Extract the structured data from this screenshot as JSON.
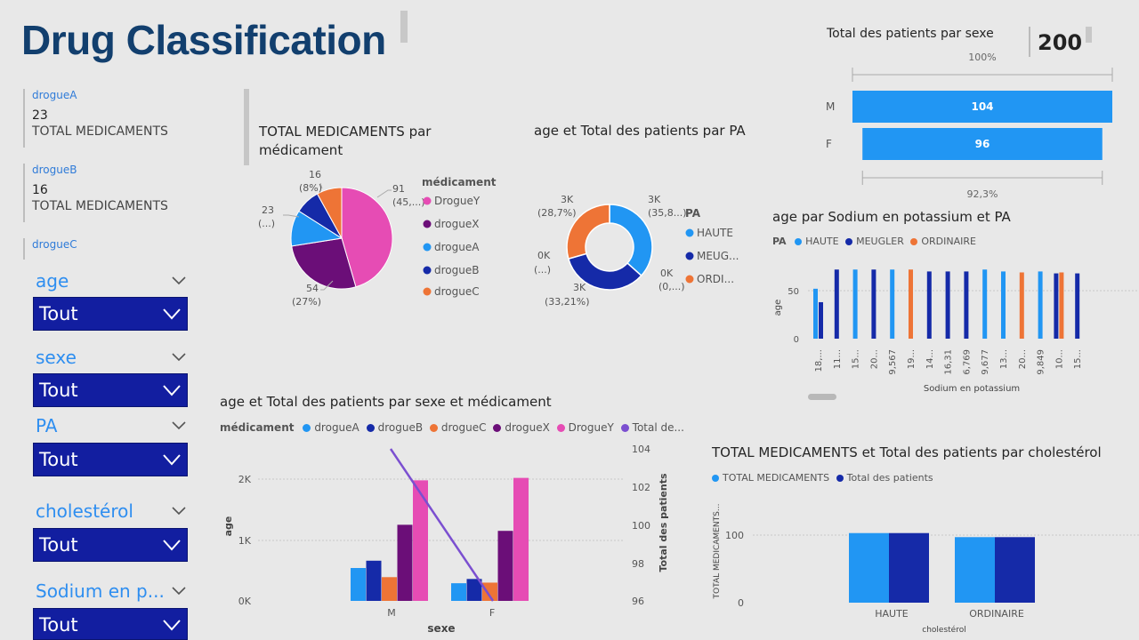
{
  "title": "Drug Classification",
  "cards": [
    {
      "label": "drogueA",
      "value": "23",
      "sub": "TOTAL MEDICAMENTS"
    },
    {
      "label": "drogueB",
      "value": "16",
      "sub": "TOTAL MEDICAMENTS"
    },
    {
      "label": "drogueC",
      "value": "",
      "sub": ""
    }
  ],
  "slicers": [
    {
      "label": "age",
      "value": "Tout"
    },
    {
      "label": "sexe",
      "value": "Tout"
    },
    {
      "label": "PA",
      "value": "Tout"
    },
    {
      "label": "cholestérol",
      "value": "Tout"
    },
    {
      "label": "Sodium en p...",
      "value": "Tout"
    }
  ],
  "colors": {
    "title": "#123f6e",
    "slicer_bg": "#121ea0",
    "drogueA": "#2196f3",
    "drogueB": "#152aa8",
    "drogueC": "#ee7436",
    "drogueX": "#6b0e78",
    "DrogueY": "#e64cb4",
    "line": "#7b4fd0"
  },
  "pie": {
    "title": "TOTAL MEDICAMENTS par médicament",
    "legend_title": "médicament",
    "legend": [
      "DrogueY",
      "drogueX",
      "drogueA",
      "drogueB",
      "drogueC"
    ],
    "labels": [
      {
        "top": "91",
        "bottom": "(45,...)"
      },
      {
        "top": "54",
        "bottom": "(27%)"
      },
      {
        "top": "23",
        "bottom": "(...)"
      },
      {
        "top": "16",
        "bottom": "(8%)"
      }
    ]
  },
  "donut": {
    "title": "age et Total des patients par PA",
    "legend_title": "PA",
    "legend": [
      "HAUTE",
      "MEUG...",
      "ORDI..."
    ],
    "labels": [
      {
        "top": "3K",
        "bottom": "(35,8...)"
      },
      {
        "top": "0K",
        "bottom": "(0,...)"
      },
      {
        "top": "3K",
        "bottom": "(33,21%)"
      },
      {
        "top": "0K",
        "bottom": "(...)"
      },
      {
        "top": "3K",
        "bottom": "(28,7%)"
      }
    ]
  },
  "funnel": {
    "title": "Total des patients par sexe",
    "kpi": "200",
    "top_pct": "100%",
    "bottom_pct": "92,3%",
    "rows": [
      {
        "label": "M",
        "value": "104"
      },
      {
        "label": "F",
        "value": "96"
      }
    ]
  },
  "sodium": {
    "title": "age par Sodium en potassium et PA",
    "legend_title": "PA",
    "legend": [
      "HAUTE",
      "MEUGLER",
      "ORDINAIRE"
    ],
    "ylabel": "age",
    "xlabel": "Sodium en potassium",
    "yticks": [
      "50",
      "0"
    ],
    "xticks": [
      "18,...",
      "11...",
      "15...",
      "20...",
      "9,567",
      "19...",
      "14...",
      "16,31",
      "6,769",
      "9,677",
      "13...",
      "20...",
      "9,849",
      "10...",
      "15..."
    ]
  },
  "combo": {
    "title": "age et Total des patients par sexe et médicament",
    "legend_title": "médicament",
    "legend": [
      "drogueA",
      "drogueB",
      "drogueC",
      "drogueX",
      "DrogueY",
      "Total de..."
    ],
    "ylabel": "age",
    "y2label": "Total des patients",
    "xlabel": "sexe",
    "yticks": [
      "2K",
      "1K",
      "0K"
    ],
    "y2ticks": [
      "104",
      "102",
      "100",
      "98",
      "96"
    ],
    "xticks": [
      "M",
      "F"
    ]
  },
  "chol": {
    "title": "TOTAL MEDICAMENTS et Total des patients par cholestérol",
    "legend": [
      "TOTAL  MEDICAMENTS",
      "Total des patients"
    ],
    "ylabel": "TOTAL MEDICAMENTS...",
    "xlabel": "cholestérol",
    "yticks": [
      "100",
      "0"
    ],
    "xticks": [
      "HAUTE",
      "ORDINAIRE"
    ]
  },
  "chart_data": [
    {
      "type": "pie",
      "title": "TOTAL MEDICAMENTS par médicament",
      "categories": [
        "DrogueY",
        "drogueX",
        "drogueA",
        "drogueB",
        "drogueC"
      ],
      "values": [
        91,
        54,
        23,
        16,
        16
      ]
    },
    {
      "type": "pie",
      "subtype": "donut",
      "title": "age et Total des patients par PA",
      "categories": [
        "HAUTE",
        "MEUGLER",
        "ORDINAIRE"
      ],
      "values": [
        3400,
        3150,
        2730
      ],
      "percent_labels": [
        "35,8...",
        "33,21%",
        "28,7%"
      ]
    },
    {
      "type": "bar",
      "subtype": "funnel",
      "title": "Total des patients par sexe",
      "categories": [
        "M",
        "F"
      ],
      "values": [
        104,
        96
      ]
    },
    {
      "type": "bar",
      "title": "age par Sodium en potassium et PA",
      "x": [
        "18,...",
        "11...",
        "15...",
        "20...",
        "9,567",
        "19...",
        "14...",
        "16,31",
        "6,769",
        "9,677",
        "13...",
        "20...",
        "9,849",
        "10...",
        "15..."
      ],
      "series": [
        {
          "name": "HAUTE",
          "values": [
            52,
            null,
            72,
            null,
            72,
            null,
            null,
            null,
            null,
            72,
            70,
            null,
            70,
            null,
            null
          ]
        },
        {
          "name": "MEUGLER",
          "values": [
            38,
            72,
            null,
            72,
            null,
            null,
            70,
            70,
            70,
            null,
            null,
            null,
            null,
            68,
            68
          ]
        },
        {
          "name": "ORDINAIRE",
          "values": [
            null,
            null,
            null,
            null,
            null,
            72,
            null,
            null,
            null,
            null,
            null,
            69,
            null,
            69,
            null
          ]
        }
      ],
      "ylim": [
        0,
        80
      ],
      "xlabel": "Sodium en potassium",
      "ylabel": "age"
    },
    {
      "type": "bar",
      "title": "age et Total des patients par sexe et médicament",
      "categories": [
        "M",
        "F"
      ],
      "series": [
        {
          "name": "drogueA",
          "values": [
            540,
            290
          ]
        },
        {
          "name": "drogueB",
          "values": [
            660,
            360
          ]
        },
        {
          "name": "drogueC",
          "values": [
            390,
            300
          ]
        },
        {
          "name": "drogueX",
          "values": [
            1250,
            1150
          ]
        },
        {
          "name": "DrogueY",
          "values": [
            1980,
            2020
          ]
        },
        {
          "name": "Total de...",
          "axis": "secondary",
          "type": "line",
          "values": [
            104,
            96
          ]
        }
      ],
      "ylim": [
        0,
        2200
      ],
      "y2lim": [
        96,
        104
      ],
      "xlabel": "sexe",
      "ylabel": "age",
      "y2label": "Total des patients"
    },
    {
      "type": "bar",
      "title": "TOTAL MEDICAMENTS et Total des patients par cholestérol",
      "categories": [
        "HAUTE",
        "ORDINAIRE"
      ],
      "series": [
        {
          "name": "TOTAL  MEDICAMENTS",
          "values": [
            103,
            97
          ]
        },
        {
          "name": "Total des patients",
          "values": [
            103,
            97
          ]
        }
      ],
      "ylim": [
        0,
        130
      ],
      "xlabel": "cholestérol",
      "ylabel": "TOTAL MEDICAMENTS..."
    }
  ]
}
